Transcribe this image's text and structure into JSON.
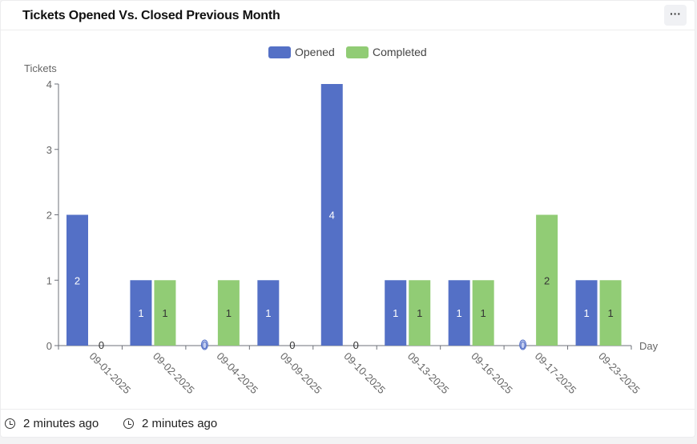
{
  "header": {
    "title": "Tickets Opened Vs. Closed Previous Month",
    "menu_icon": "ellipsis-icon"
  },
  "footer": {
    "timestamps": [
      "2 minutes ago",
      "2 minutes ago"
    ],
    "icon": "clock-icon"
  },
  "chart_data": {
    "type": "bar",
    "title": "",
    "xlabel": "Day",
    "ylabel": "Tickets",
    "ylim": [
      0,
      4
    ],
    "yticks": [
      0,
      1,
      2,
      3,
      4
    ],
    "grid": false,
    "legend": "top-center",
    "categories": [
      "09-01-2025",
      "09-02-2025",
      "09-04-2025",
      "09-09-2025",
      "09-10-2025",
      "09-13-2025",
      "09-16-2025",
      "09-17-2025",
      "09-23-2025"
    ],
    "series": [
      {
        "name": "Opened",
        "color": "#5470c6",
        "values": [
          2,
          1,
          0,
          1,
          4,
          1,
          1,
          0,
          1
        ]
      },
      {
        "name": "Completed",
        "color": "#91cc75",
        "values": [
          0,
          1,
          1,
          0,
          0,
          1,
          1,
          2,
          1
        ]
      }
    ]
  }
}
